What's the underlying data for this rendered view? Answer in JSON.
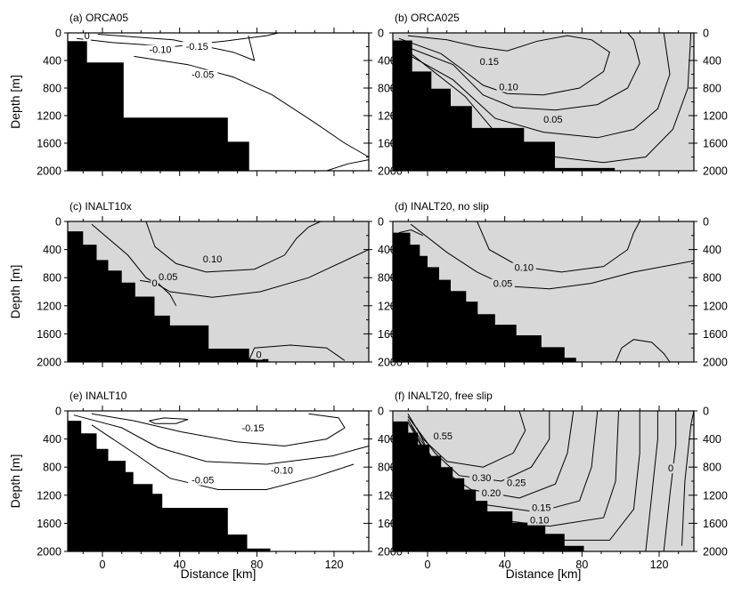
{
  "chart_data": [
    {
      "type": "contour",
      "title": "(a) ORCA05",
      "xlim": [
        -18,
        138
      ],
      "ylim": [
        0,
        2000
      ],
      "ylabel": "Depth [m]",
      "xlabel": "",
      "yticks": [
        "0",
        "400",
        "800",
        "1200",
        "1600",
        "2000"
      ],
      "xticks": [],
      "shaded": false,
      "contour_labels": [
        {
          "text": "0",
          "x": -8,
          "y": 80
        },
        {
          "text": "-0.10",
          "x": 30,
          "y": 280
        },
        {
          "text": "-0.15",
          "x": 49,
          "y": 230
        },
        {
          "text": "-0.05",
          "x": 52,
          "y": 640
        }
      ],
      "topography": [
        [
          -18,
          2000
        ],
        [
          -18,
          120
        ],
        [
          -8,
          120
        ],
        [
          -8,
          430
        ],
        [
          11,
          430
        ],
        [
          11,
          1230
        ],
        [
          65,
          1230
        ],
        [
          65,
          1580
        ],
        [
          76,
          1580
        ],
        [
          76,
          2000
        ]
      ]
    },
    {
      "type": "contour",
      "title": "(b) ORCA025",
      "xlim": [
        -18,
        138
      ],
      "ylim": [
        0,
        2000
      ],
      "ylabel": "",
      "xlabel": "",
      "yticks": [
        "0",
        "400",
        "800",
        "1200",
        "1600",
        "2000"
      ],
      "xticks": [],
      "shaded": true,
      "contour_labels": [
        {
          "text": "0.15",
          "x": 32,
          "y": 450
        },
        {
          "text": "0.10",
          "x": 42,
          "y": 820
        },
        {
          "text": "0.05",
          "x": 65,
          "y": 1290
        }
      ],
      "topography": [
        [
          -18,
          2000
        ],
        [
          -18,
          110
        ],
        [
          -8,
          110
        ],
        [
          -8,
          560
        ],
        [
          2,
          560
        ],
        [
          2,
          810
        ],
        [
          12,
          810
        ],
        [
          12,
          1060
        ],
        [
          23,
          1060
        ],
        [
          23,
          1380
        ],
        [
          50,
          1380
        ],
        [
          50,
          1580
        ],
        [
          66,
          1580
        ],
        [
          66,
          1960
        ],
        [
          97,
          1960
        ],
        [
          97,
          2000
        ]
      ]
    },
    {
      "type": "contour",
      "title": "(c) INALT10x",
      "xlim": [
        -18,
        138
      ],
      "ylim": [
        0,
        2000
      ],
      "ylabel": "Depth [m]",
      "xlabel": "",
      "yticks": [
        "0",
        "400",
        "800",
        "1200",
        "1600",
        "2000"
      ],
      "xticks": [],
      "shaded": true,
      "contour_labels": [
        {
          "text": "0.10",
          "x": 57,
          "y": 570
        },
        {
          "text": "0.05",
          "x": 34,
          "y": 820
        },
        {
          "text": "0",
          "x": 27,
          "y": 910
        },
        {
          "text": "0",
          "x": 81,
          "y": 1930
        }
      ],
      "topography": [
        [
          -18,
          2000
        ],
        [
          -18,
          140
        ],
        [
          -10,
          140
        ],
        [
          -10,
          330
        ],
        [
          -3,
          330
        ],
        [
          -3,
          550
        ],
        [
          3,
          550
        ],
        [
          3,
          700
        ],
        [
          10,
          700
        ],
        [
          10,
          870
        ],
        [
          17,
          870
        ],
        [
          17,
          1070
        ],
        [
          27,
          1070
        ],
        [
          27,
          1340
        ],
        [
          35,
          1340
        ],
        [
          35,
          1480
        ],
        [
          55,
          1480
        ],
        [
          55,
          1810
        ],
        [
          76,
          1810
        ],
        [
          76,
          1960
        ],
        [
          86,
          1960
        ],
        [
          86,
          2000
        ]
      ]
    },
    {
      "type": "contour",
      "title": "(d) INALT20, no slip",
      "xlim": [
        -18,
        138
      ],
      "ylim": [
        0,
        2000
      ],
      "ylabel": "",
      "xlabel": "",
      "yticks": [
        "0",
        "400",
        "800",
        "1200",
        "1600",
        "2000"
      ],
      "xticks": [],
      "shaded": true,
      "contour_labels": [
        {
          "text": "0.10",
          "x": 50,
          "y": 690
        },
        {
          "text": "0.05",
          "x": 39,
          "y": 920
        }
      ],
      "topography": [
        [
          -18,
          2000
        ],
        [
          -18,
          160
        ],
        [
          -9,
          160
        ],
        [
          -9,
          330
        ],
        [
          -4,
          330
        ],
        [
          -4,
          490
        ],
        [
          0,
          490
        ],
        [
          0,
          650
        ],
        [
          6,
          650
        ],
        [
          6,
          830
        ],
        [
          12,
          830
        ],
        [
          12,
          990
        ],
        [
          20,
          990
        ],
        [
          20,
          1140
        ],
        [
          26,
          1140
        ],
        [
          26,
          1320
        ],
        [
          35,
          1320
        ],
        [
          35,
          1470
        ],
        [
          46,
          1470
        ],
        [
          46,
          1620
        ],
        [
          59,
          1620
        ],
        [
          59,
          1790
        ],
        [
          71,
          1790
        ],
        [
          71,
          1940
        ],
        [
          77,
          1940
        ],
        [
          77,
          2000
        ]
      ]
    },
    {
      "type": "contour",
      "title": "(e) INALT10",
      "xlim": [
        -18,
        138
      ],
      "ylim": [
        0,
        2000
      ],
      "ylabel": "Depth [m]",
      "xlabel": "Distance [km]",
      "yticks": [
        "0",
        "400",
        "800",
        "1200",
        "1600",
        "2000"
      ],
      "xticks": [
        "0",
        "40",
        "80",
        "120"
      ],
      "shaded": false,
      "contour_labels": [
        {
          "text": "-0.15",
          "x": 78,
          "y": 280
        },
        {
          "text": "-0.10",
          "x": 93,
          "y": 880
        },
        {
          "text": "-0.05",
          "x": 52,
          "y": 1020
        }
      ],
      "topography": [
        [
          -18,
          2000
        ],
        [
          -18,
          140
        ],
        [
          -11,
          140
        ],
        [
          -11,
          320
        ],
        [
          -3,
          320
        ],
        [
          -3,
          540
        ],
        [
          3,
          540
        ],
        [
          3,
          710
        ],
        [
          12,
          710
        ],
        [
          12,
          870
        ],
        [
          16,
          870
        ],
        [
          16,
          1040
        ],
        [
          26,
          1040
        ],
        [
          26,
          1180
        ],
        [
          31,
          1180
        ],
        [
          31,
          1380
        ],
        [
          65,
          1380
        ],
        [
          65,
          1760
        ],
        [
          75,
          1760
        ],
        [
          75,
          1960
        ],
        [
          87,
          1960
        ],
        [
          87,
          2000
        ]
      ]
    },
    {
      "type": "contour",
      "title": "(f) INALT20, free slip",
      "xlim": [
        -18,
        138
      ],
      "ylim": [
        0,
        2000
      ],
      "ylabel": "",
      "xlabel": "Distance [km]",
      "yticks": [
        "0",
        "400",
        "800",
        "1200",
        "1600",
        "2000"
      ],
      "xticks": [
        "0",
        "40",
        "80",
        "120"
      ],
      "shaded": true,
      "contour_labels": [
        {
          "text": "0.55",
          "x": 8,
          "y": 390
        },
        {
          "text": "0.30",
          "x": 28,
          "y": 990
        },
        {
          "text": "0.25",
          "x": 46,
          "y": 1060
        },
        {
          "text": "0.20",
          "x": 33,
          "y": 1200
        },
        {
          "text": "0.15",
          "x": 59,
          "y": 1410
        },
        {
          "text": "0.10",
          "x": 58,
          "y": 1590
        },
        {
          "text": "0",
          "x": 126,
          "y": 850
        }
      ],
      "topography": [
        [
          -18,
          2000
        ],
        [
          -18,
          150
        ],
        [
          -10,
          150
        ],
        [
          -10,
          310
        ],
        [
          -5,
          310
        ],
        [
          -5,
          480
        ],
        [
          1,
          480
        ],
        [
          1,
          640
        ],
        [
          7,
          640
        ],
        [
          7,
          800
        ],
        [
          13,
          800
        ],
        [
          13,
          960
        ],
        [
          19,
          960
        ],
        [
          19,
          1120
        ],
        [
          25,
          1120
        ],
        [
          25,
          1280
        ],
        [
          31,
          1280
        ],
        [
          31,
          1430
        ],
        [
          44,
          1430
        ],
        [
          44,
          1590
        ],
        [
          61,
          1590
        ],
        [
          61,
          1750
        ],
        [
          71,
          1750
        ],
        [
          71,
          1920
        ],
        [
          81,
          1920
        ],
        [
          81,
          2000
        ]
      ]
    }
  ]
}
